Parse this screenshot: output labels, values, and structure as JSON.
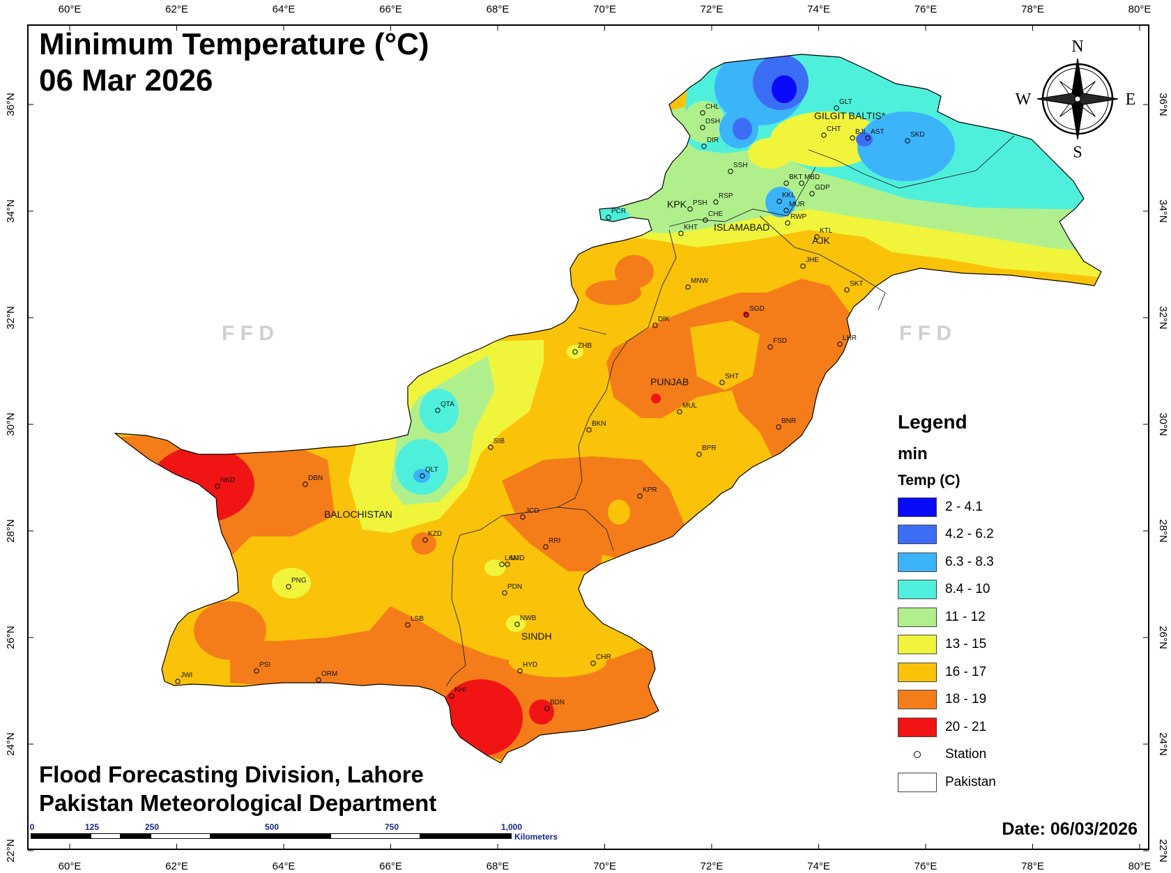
{
  "title": {
    "line1": "Minimum Temperature (°C)",
    "line2": "06 Mar 2026"
  },
  "credits": {
    "line1": "Flood Forecasting Division, Lahore",
    "line2": "Pakistan Meteorological Department"
  },
  "date_label": "Date: 06/03/2026",
  "watermark": "F F D",
  "compass": {
    "n": "N",
    "s": "S",
    "e": "E",
    "w": "W"
  },
  "axes": {
    "lon_ticks": [
      "60°E",
      "62°E",
      "64°E",
      "66°E",
      "68°E",
      "70°E",
      "72°E",
      "74°E",
      "76°E",
      "78°E",
      "80°E"
    ],
    "lat_ticks": [
      "36°N",
      "34°N",
      "32°N",
      "30°N",
      "28°N",
      "26°N",
      "24°N",
      "22°N"
    ]
  },
  "legend": {
    "heading": "Legend",
    "subheading": "min",
    "field": "Temp (C)",
    "classes": [
      {
        "label": "2 - 4.1",
        "color": "#0a0afa"
      },
      {
        "label": "4.2 - 6.2",
        "color": "#3c6ef5"
      },
      {
        "label": "6.3 - 8.3",
        "color": "#3cb4fa"
      },
      {
        "label": "8.4 - 10",
        "color": "#4ef0dc"
      },
      {
        "label": "11 - 12",
        "color": "#b0f08c"
      },
      {
        "label": "13 - 15",
        "color": "#f0f53c"
      },
      {
        "label": "16 - 17",
        "color": "#fac30a"
      },
      {
        "label": "18 - 19",
        "color": "#f57d19"
      },
      {
        "label": "20 - 21",
        "color": "#f01414"
      }
    ],
    "station_label": "Station",
    "boundary_label": "Pakistan"
  },
  "scale_bar": {
    "ticks": [
      "0",
      "125",
      "250",
      "500",
      "750",
      "1,000"
    ],
    "unit": "Kilometers"
  },
  "regions": [
    {
      "name": "GILGIT BALTIS*"
    },
    {
      "name": "KPK"
    },
    {
      "name": "ISLAMABAD"
    },
    {
      "name": "AJK"
    },
    {
      "name": "PUNJAB"
    },
    {
      "name": "BALOCHISTAN"
    },
    {
      "name": "SINDH"
    }
  ],
  "stations": [
    {
      "code": "GLT"
    },
    {
      "code": "CHL"
    },
    {
      "code": "DSH"
    },
    {
      "code": "DIR"
    },
    {
      "code": "CHT"
    },
    {
      "code": "BJI"
    },
    {
      "code": "AST"
    },
    {
      "code": "SKD"
    },
    {
      "code": "SSH"
    },
    {
      "code": "BKT"
    },
    {
      "code": "MBD"
    },
    {
      "code": "KKL"
    },
    {
      "code": "GDP"
    },
    {
      "code": "MUR"
    },
    {
      "code": "RWP"
    },
    {
      "code": "PSH"
    },
    {
      "code": "RSP"
    },
    {
      "code": "CHE"
    },
    {
      "code": "KHT"
    },
    {
      "code": "PCR"
    },
    {
      "code": "KTL"
    },
    {
      "code": "JHE"
    },
    {
      "code": "SKT"
    },
    {
      "code": "MNW"
    },
    {
      "code": "SGD"
    },
    {
      "code": "DIK"
    },
    {
      "code": "FSD"
    },
    {
      "code": "LHR"
    },
    {
      "code": "ZHB"
    },
    {
      "code": "SHT"
    },
    {
      "code": "MUL"
    },
    {
      "code": "QTA"
    },
    {
      "code": "BKN"
    },
    {
      "code": "BNR"
    },
    {
      "code": "SIB"
    },
    {
      "code": "BPR"
    },
    {
      "code": "QLT"
    },
    {
      "code": "NKD"
    },
    {
      "code": "DBN"
    },
    {
      "code": "KPR"
    },
    {
      "code": "JCD"
    },
    {
      "code": "KZD"
    },
    {
      "code": "RRI"
    },
    {
      "code": "LKN"
    },
    {
      "code": "MJD"
    },
    {
      "code": "PNG"
    },
    {
      "code": "PDN"
    },
    {
      "code": "LSB"
    },
    {
      "code": "NWB"
    },
    {
      "code": "CHR"
    },
    {
      "code": "HYD"
    },
    {
      "code": "PSI"
    },
    {
      "code": "ORM"
    },
    {
      "code": "JWI"
    },
    {
      "code": "KHI"
    },
    {
      "code": "BDN"
    }
  ]
}
